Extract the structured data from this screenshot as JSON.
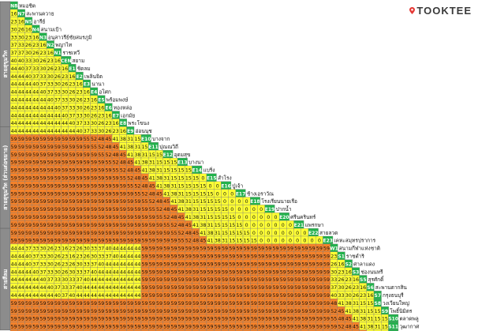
{
  "brand": {
    "name": "TOOKTEE",
    "pin_color": "#e53935"
  },
  "colors": {
    "yellow": "#ffff33",
    "orange": "#f5822a",
    "green": "#22b14c",
    "grey": "#8c8c8c",
    "border": "#7a7a7a"
  },
  "lines": [
    {
      "name": "สายสุขุมวิท",
      "rows": [
        0,
        15
      ]
    },
    {
      "name": "สายสุขุมวิท (ส่วนต่อขยาย)",
      "rows": [
        16,
        28
      ]
    },
    {
      "name": "สายสีลม",
      "rows": [
        29,
        41
      ]
    }
  ],
  "rows": [
    {
      "code": "N8",
      "name": "หมอชิต",
      "fares": []
    },
    {
      "code": "N7",
      "name": "สะพานควาย",
      "fares": [
        16
      ]
    },
    {
      "code": "N5",
      "name": "อารีย์",
      "fares": [
        23,
        16
      ]
    },
    {
      "code": "N4",
      "name": "สนามเป้า",
      "fares": [
        30,
        26,
        16
      ]
    },
    {
      "code": "N3",
      "name": "อนุสาวรีย์ชัยสมรภูมิ",
      "fares": [
        33,
        30,
        23,
        16
      ]
    },
    {
      "code": "N2",
      "name": "พญาไท",
      "fares": [
        37,
        33,
        26,
        23,
        16
      ]
    },
    {
      "code": "N1",
      "name": "ราชเทวี",
      "fares": [
        37,
        37,
        30,
        26,
        23,
        16
      ]
    },
    {
      "code": "CEN",
      "name": "สยาม",
      "fares": [
        40,
        40,
        33,
        30,
        26,
        23,
        16
      ]
    },
    {
      "code": "E1",
      "name": "ชิดลม",
      "fares": [
        44,
        40,
        37,
        33,
        30,
        26,
        23,
        16
      ]
    },
    {
      "code": "E2",
      "name": "เพลินจิต",
      "fares": [
        44,
        44,
        40,
        37,
        33,
        30,
        26,
        23,
        16
      ]
    },
    {
      "code": "E3",
      "name": "นานา",
      "fares": [
        44,
        44,
        44,
        40,
        37,
        33,
        30,
        26,
        23,
        16
      ]
    },
    {
      "code": "E4",
      "name": "อโศก",
      "fares": [
        44,
        44,
        44,
        44,
        40,
        37,
        33,
        30,
        26,
        23,
        16
      ]
    },
    {
      "code": "E5",
      "name": "พร้อมพงษ์",
      "fares": [
        44,
        44,
        44,
        44,
        44,
        40,
        37,
        33,
        30,
        26,
        23,
        16
      ]
    },
    {
      "code": "E6",
      "name": "ทองหล่อ",
      "fares": [
        44,
        44,
        44,
        44,
        44,
        44,
        40,
        37,
        33,
        30,
        26,
        23,
        16
      ]
    },
    {
      "code": "E7",
      "name": "เอกมัย",
      "fares": [
        44,
        44,
        44,
        44,
        44,
        44,
        44,
        40,
        37,
        33,
        30,
        26,
        23,
        16
      ]
    },
    {
      "code": "E8",
      "name": "พระโขนง",
      "fares": [
        44,
        44,
        44,
        44,
        44,
        44,
        44,
        44,
        40,
        37,
        33,
        30,
        26,
        23,
        16
      ]
    },
    {
      "code": "E9",
      "name": "อ่อนนุช",
      "fares": [
        44,
        44,
        44,
        44,
        44,
        44,
        44,
        44,
        44,
        40,
        37,
        33,
        30,
        26,
        23,
        16
      ]
    },
    {
      "code": "E10",
      "name": "บางจาก",
      "fares": [
        59,
        59,
        59,
        59,
        59,
        59,
        59,
        59,
        59,
        59,
        55,
        52,
        48,
        45,
        41,
        38,
        31,
        15
      ]
    },
    {
      "code": "E11",
      "name": "ปุณณวิถี",
      "fares": [
        59,
        59,
        59,
        59,
        59,
        59,
        59,
        59,
        59,
        59,
        59,
        55,
        52,
        48,
        45,
        41,
        38,
        31,
        15
      ]
    },
    {
      "code": "E12",
      "name": "อุดมสุข",
      "fares": [
        59,
        59,
        59,
        59,
        59,
        59,
        59,
        59,
        59,
        59,
        59,
        59,
        55,
        52,
        48,
        45,
        41,
        38,
        31,
        15,
        15
      ]
    },
    {
      "code": "E13",
      "name": "บางนา",
      "fares": [
        59,
        59,
        59,
        59,
        59,
        59,
        59,
        59,
        59,
        59,
        59,
        59,
        59,
        55,
        52,
        48,
        45,
        41,
        38,
        31,
        15,
        15,
        15
      ]
    },
    {
      "code": "E14",
      "name": "แบริ่ง",
      "fares": [
        59,
        59,
        59,
        59,
        59,
        59,
        59,
        59,
        59,
        59,
        59,
        59,
        59,
        59,
        55,
        52,
        48,
        45,
        41,
        38,
        31,
        15,
        15,
        15,
        15
      ]
    },
    {
      "code": "E15",
      "name": "สำโรง",
      "fares": [
        59,
        59,
        59,
        59,
        59,
        59,
        59,
        59,
        59,
        59,
        59,
        59,
        59,
        59,
        59,
        55,
        52,
        48,
        45,
        41,
        38,
        31,
        15,
        15,
        15,
        15,
        0
      ]
    },
    {
      "code": "E16",
      "name": "ปู่เจ้า",
      "fares": [
        59,
        59,
        59,
        59,
        59,
        59,
        59,
        59,
        59,
        59,
        59,
        59,
        59,
        59,
        59,
        59,
        55,
        52,
        48,
        45,
        41,
        38,
        31,
        15,
        15,
        15,
        15,
        0,
        0
      ]
    },
    {
      "code": "E17",
      "name": "ช้างเอราวัณ",
      "fares": [
        59,
        59,
        59,
        59,
        59,
        59,
        59,
        59,
        59,
        59,
        59,
        59,
        59,
        59,
        59,
        59,
        59,
        55,
        52,
        48,
        45,
        41,
        38,
        31,
        15,
        15,
        15,
        15,
        0,
        0,
        0
      ]
    },
    {
      "code": "E18",
      "name": "โรงเรียนนายเรือ",
      "fares": [
        59,
        59,
        59,
        59,
        59,
        59,
        59,
        59,
        59,
        59,
        59,
        59,
        59,
        59,
        59,
        59,
        59,
        59,
        55,
        52,
        48,
        45,
        41,
        38,
        31,
        15,
        15,
        15,
        15,
        0,
        0,
        0,
        0
      ]
    },
    {
      "code": "E19",
      "name": "ปากน้ำ",
      "fares": [
        59,
        59,
        59,
        59,
        59,
        59,
        59,
        59,
        59,
        59,
        59,
        59,
        59,
        59,
        59,
        59,
        59,
        59,
        59,
        55,
        52,
        48,
        45,
        41,
        38,
        31,
        15,
        15,
        15,
        15,
        0,
        0,
        0,
        0,
        0
      ]
    },
    {
      "code": "E20",
      "name": "ศรีนครินทร์",
      "fares": [
        59,
        59,
        59,
        59,
        59,
        59,
        59,
        59,
        59,
        59,
        59,
        59,
        59,
        59,
        59,
        59,
        59,
        59,
        59,
        59,
        55,
        52,
        48,
        45,
        41,
        38,
        31,
        15,
        15,
        15,
        15,
        0,
        0,
        0,
        0,
        0,
        0
      ]
    },
    {
      "code": "E21",
      "name": "แพรกษา",
      "fares": [
        59,
        59,
        59,
        59,
        59,
        59,
        59,
        59,
        59,
        59,
        59,
        59,
        59,
        59,
        59,
        59,
        59,
        59,
        59,
        59,
        59,
        55,
        52,
        48,
        45,
        41,
        38,
        31,
        15,
        15,
        15,
        15,
        0,
        0,
        0,
        0,
        0,
        0,
        0
      ]
    },
    {
      "code": "E22",
      "name": "สายลวด",
      "fares": [
        59,
        59,
        59,
        59,
        59,
        59,
        59,
        59,
        59,
        59,
        59,
        59,
        59,
        59,
        59,
        59,
        59,
        59,
        59,
        59,
        59,
        59,
        55,
        52,
        48,
        45,
        41,
        38,
        31,
        15,
        15,
        15,
        15,
        0,
        0,
        0,
        0,
        0,
        0,
        0,
        0
      ]
    },
    {
      "code": "E23",
      "name": "เคหะสมุทรปราการ",
      "fares": [
        59,
        59,
        59,
        59,
        59,
        59,
        59,
        59,
        59,
        59,
        59,
        59,
        59,
        59,
        59,
        59,
        59,
        59,
        59,
        59,
        59,
        59,
        59,
        55,
        52,
        48,
        45,
        41,
        38,
        31,
        15,
        15,
        15,
        15,
        0,
        0,
        0,
        0,
        0,
        0,
        0,
        0,
        0
      ]
    },
    {
      "code": "W1",
      "name": "สนามกีฬาแห่งชาติ",
      "fares": [
        44,
        44,
        37,
        33,
        30,
        26,
        23,
        16,
        23,
        26,
        30,
        33,
        37,
        40,
        44,
        44,
        44,
        44,
        59,
        59,
        59,
        59,
        59,
        59,
        59,
        59,
        59,
        59,
        59,
        59,
        59,
        59,
        59,
        59,
        59,
        59,
        59,
        59,
        59,
        59,
        59,
        59,
        59,
        59
      ]
    },
    {
      "code": "S1",
      "name": "ราชดำริ",
      "fares": [
        44,
        44,
        40,
        37,
        33,
        30,
        26,
        23,
        16,
        23,
        26,
        30,
        33,
        37,
        40,
        44,
        44,
        44,
        59,
        59,
        59,
        59,
        59,
        59,
        59,
        59,
        59,
        59,
        59,
        59,
        59,
        59,
        59,
        59,
        59,
        59,
        59,
        59,
        59,
        59,
        59,
        59,
        59,
        59,
        23
      ]
    },
    {
      "code": "S2",
      "name": "ศาลาแดง",
      "fares": [
        44,
        44,
        40,
        37,
        33,
        30,
        26,
        23,
        26,
        30,
        33,
        37,
        40,
        44,
        44,
        44,
        44,
        44,
        59,
        59,
        59,
        59,
        59,
        59,
        59,
        59,
        59,
        59,
        59,
        59,
        59,
        59,
        59,
        59,
        59,
        59,
        59,
        59,
        59,
        59,
        59,
        59,
        59,
        59,
        26,
        16
      ]
    },
    {
      "code": "S3",
      "name": "ช่องนนทรี",
      "fares": [
        44,
        44,
        44,
        40,
        37,
        33,
        30,
        26,
        30,
        33,
        37,
        40,
        44,
        44,
        44,
        44,
        44,
        44,
        59,
        59,
        59,
        59,
        59,
        59,
        59,
        59,
        59,
        59,
        59,
        59,
        59,
        59,
        59,
        59,
        59,
        59,
        59,
        59,
        59,
        59,
        59,
        59,
        59,
        59,
        30,
        23,
        16
      ]
    },
    {
      "code": "S5",
      "name": "สุรศักดิ์",
      "fares": [
        44,
        44,
        44,
        44,
        40,
        37,
        33,
        30,
        33,
        37,
        40,
        44,
        44,
        44,
        44,
        44,
        44,
        44,
        59,
        59,
        59,
        59,
        59,
        59,
        59,
        59,
        59,
        59,
        59,
        59,
        59,
        59,
        59,
        59,
        59,
        59,
        59,
        59,
        59,
        59,
        59,
        59,
        59,
        59,
        33,
        26,
        23,
        16
      ]
    },
    {
      "code": "S6",
      "name": "สะพานตากสิน",
      "fares": [
        44,
        44,
        44,
        44,
        44,
        40,
        37,
        33,
        37,
        40,
        44,
        44,
        44,
        44,
        44,
        44,
        44,
        44,
        59,
        59,
        59,
        59,
        59,
        59,
        59,
        59,
        59,
        59,
        59,
        59,
        59,
        59,
        59,
        59,
        59,
        59,
        59,
        59,
        59,
        59,
        59,
        59,
        59,
        59,
        37,
        30,
        26,
        23,
        16
      ]
    },
    {
      "code": "S7",
      "name": "กรุงธนบุรี",
      "fares": [
        44,
        44,
        44,
        44,
        44,
        44,
        40,
        37,
        40,
        44,
        44,
        44,
        44,
        44,
        44,
        44,
        44,
        44,
        59,
        59,
        59,
        59,
        59,
        59,
        59,
        59,
        59,
        59,
        59,
        59,
        59,
        59,
        59,
        59,
        59,
        59,
        59,
        59,
        59,
        59,
        59,
        59,
        59,
        59,
        40,
        33,
        30,
        26,
        23,
        16
      ]
    },
    {
      "code": "S8",
      "name": "วงเวียนใหญ่",
      "fares": [
        59,
        59,
        59,
        59,
        59,
        59,
        59,
        59,
        59,
        59,
        59,
        59,
        59,
        59,
        59,
        59,
        59,
        59,
        59,
        59,
        59,
        59,
        59,
        59,
        59,
        59,
        59,
        59,
        59,
        59,
        59,
        59,
        59,
        59,
        59,
        59,
        59,
        59,
        59,
        59,
        59,
        59,
        59,
        59,
        48,
        41,
        38,
        31,
        15,
        15
      ]
    },
    {
      "code": "S9",
      "name": "โพธิ์นิมิตร",
      "fares": [
        59,
        59,
        59,
        59,
        59,
        59,
        59,
        59,
        59,
        59,
        59,
        59,
        59,
        59,
        59,
        59,
        59,
        59,
        59,
        59,
        59,
        59,
        59,
        59,
        59,
        59,
        59,
        59,
        59,
        59,
        59,
        59,
        59,
        59,
        59,
        59,
        59,
        59,
        59,
        59,
        59,
        59,
        59,
        59,
        52,
        45,
        41,
        38,
        31,
        15,
        15
      ]
    },
    {
      "code": "S10",
      "name": "ตลาดพลู",
      "fares": [
        59,
        59,
        59,
        59,
        59,
        59,
        59,
        59,
        59,
        59,
        59,
        59,
        59,
        59,
        59,
        59,
        59,
        59,
        59,
        59,
        59,
        59,
        59,
        59,
        59,
        59,
        59,
        59,
        59,
        59,
        59,
        59,
        59,
        59,
        59,
        59,
        59,
        59,
        59,
        59,
        59,
        59,
        59,
        59,
        55,
        48,
        45,
        41,
        38,
        31,
        15,
        15
      ]
    },
    {
      "code": "S11",
      "name": "วุฒากาศ",
      "fares": [
        59,
        59,
        59,
        59,
        59,
        59,
        59,
        59,
        59,
        59,
        59,
        59,
        59,
        59,
        59,
        59,
        59,
        59,
        59,
        59,
        59,
        59,
        59,
        59,
        59,
        59,
        59,
        59,
        59,
        59,
        59,
        59,
        59,
        59,
        59,
        59,
        59,
        59,
        59,
        59,
        59,
        59,
        59,
        59,
        59,
        52,
        48,
        45,
        41,
        38,
        31,
        15
      ]
    },
    {
      "code": "S12",
      "name": "บางหว้า",
      "fares": [
        59,
        59,
        59,
        59,
        59,
        59,
        59,
        59,
        59,
        59,
        59,
        59,
        59,
        59,
        59,
        59,
        59,
        59,
        59,
        59,
        59,
        59,
        59,
        59,
        59,
        59,
        59,
        59,
        59,
        59,
        59,
        59,
        59,
        59,
        59,
        59,
        59,
        59,
        59,
        59,
        59,
        59,
        59,
        59,
        59,
        55,
        52,
        48,
        45,
        41,
        38,
        31
      ]
    }
  ]
}
